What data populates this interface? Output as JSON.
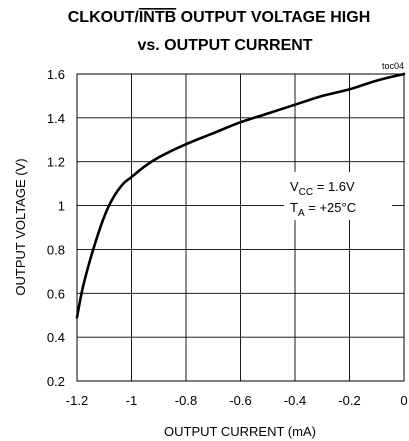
{
  "chart_data": {
    "type": "line",
    "title_line1_pre": "CLKOUT/",
    "title_line1_over": "INTB",
    "title_line1_post": " OUTPUT VOLTAGE HIGH",
    "title_line2": "vs. OUTPUT CURRENT",
    "xlabel": "OUTPUT CURRENT (mA)",
    "ylabel": "OUTPUT VOLTAGE (V)",
    "tag": "toc04",
    "xlim": [
      -1.2,
      0
    ],
    "ylim": [
      0.2,
      1.6
    ],
    "x_ticks": [
      -1.2,
      -1,
      -0.8,
      -0.6,
      -0.4,
      -0.2,
      0
    ],
    "x_tick_labels": [
      "-1.2",
      "-1",
      "-0.8",
      "-0.6",
      "-0.4",
      "-0.2",
      "0"
    ],
    "y_ticks": [
      0.2,
      0.4,
      0.6,
      0.8,
      1,
      1.2,
      1.4,
      1.6
    ],
    "y_tick_labels": [
      "0.2",
      "0.4",
      "0.6",
      "0.8",
      "1",
      "1.2",
      "1.4",
      "1.6"
    ],
    "grid": true,
    "annotations": {
      "vcc_main": "V",
      "vcc_sub": "CC",
      "vcc_value": " = 1.6V",
      "ta_main": "T",
      "ta_sub": "A",
      "ta_value": " = +25°C"
    },
    "series": [
      {
        "x": [
          -1.2,
          -1.18,
          -1.15,
          -1.12,
          -1.09,
          -1.06,
          -1.03,
          -1.0,
          -0.95,
          -0.9,
          -0.8,
          -0.7,
          -0.6,
          -0.5,
          -0.4,
          -0.3,
          -0.2,
          -0.1,
          0.0
        ],
        "y": [
          0.49,
          0.62,
          0.76,
          0.88,
          0.98,
          1.05,
          1.1,
          1.13,
          1.18,
          1.22,
          1.28,
          1.33,
          1.38,
          1.42,
          1.46,
          1.5,
          1.53,
          1.57,
          1.6
        ]
      }
    ]
  }
}
